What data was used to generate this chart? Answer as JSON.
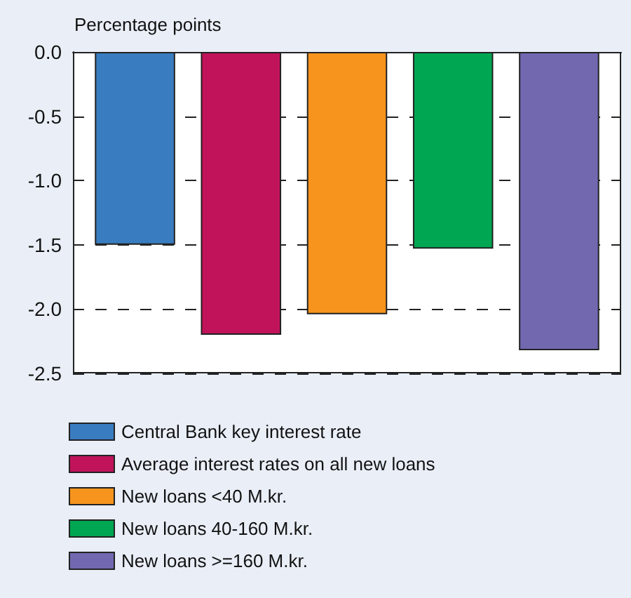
{
  "chart_data": {
    "type": "bar",
    "ylabel": "Percentage points",
    "categories": [
      null
    ],
    "series": [
      {
        "name": "Central Bank key interest rate",
        "color": "#3a7cc0",
        "values": [
          -1.5
        ]
      },
      {
        "name": "Average interest rates on all new loans",
        "color": "#c0135a",
        "values": [
          -2.2
        ]
      },
      {
        "name": "New loans <40 M.kr.",
        "color": "#f7941d",
        "values": [
          -2.04
        ]
      },
      {
        "name": "New loans 40-160 M.kr.",
        "color": "#00a651",
        "values": [
          -1.53
        ]
      },
      {
        "name": "New loans >=160 M.kr.",
        "color": "#7268b0",
        "values": [
          -2.32
        ]
      }
    ],
    "ylim": [
      -2.5,
      0
    ],
    "yticks": [
      {
        "value": 0,
        "label": "0.0"
      },
      {
        "value": -0.5,
        "label": "-0.5"
      },
      {
        "value": -1,
        "label": "-1.0"
      },
      {
        "value": -1.5,
        "label": "-1.5"
      },
      {
        "value": -2,
        "label": "-2.0"
      },
      {
        "value": -2.5,
        "label": "-2.5"
      }
    ],
    "grid": "y",
    "legend": "bottom"
  }
}
